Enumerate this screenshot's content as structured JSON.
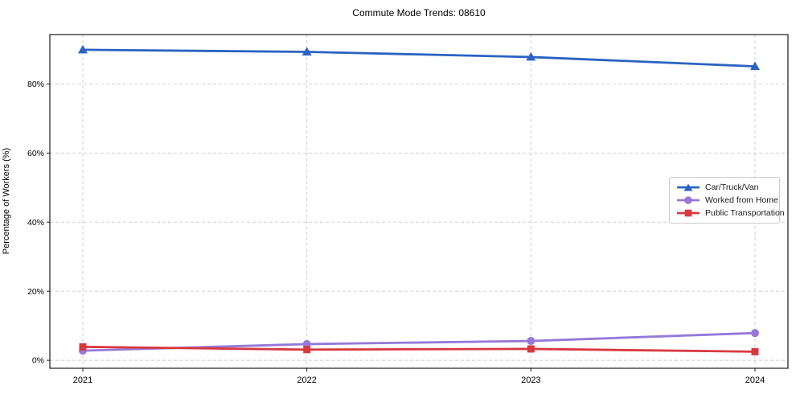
{
  "chart_data": {
    "type": "line",
    "title": "Commute Mode Trends: 08610",
    "xlabel": "",
    "ylabel": "Percentage of Workers (%)",
    "x": [
      "2021",
      "2022",
      "2023",
      "2024"
    ],
    "series": [
      {
        "name": "Car/Truck/Van",
        "color": "#2a63c2",
        "marker": "triangle",
        "values": [
          89.9,
          89.3,
          87.8,
          85.1
        ]
      },
      {
        "name": "Worked from Home",
        "color": "#9678d8",
        "marker": "circle",
        "values": [
          2.8,
          4.7,
          5.6,
          7.9
        ]
      },
      {
        "name": "Public Transportation",
        "color": "#d8393f",
        "marker": "square",
        "values": [
          3.9,
          3.1,
          3.3,
          2.5
        ]
      }
    ],
    "ytick_labels": [
      "0%",
      "20%",
      "40%",
      "60%",
      "80%"
    ],
    "ytick_values": [
      0,
      20,
      40,
      60,
      80
    ],
    "ylim": [
      -2.3,
      94.3
    ],
    "grid": true,
    "grid_style": "dashed",
    "grid_color": "#cccccc",
    "axis_color": "#1a1a1a",
    "background_color": "#ffffff",
    "legend_position": "center right"
  }
}
